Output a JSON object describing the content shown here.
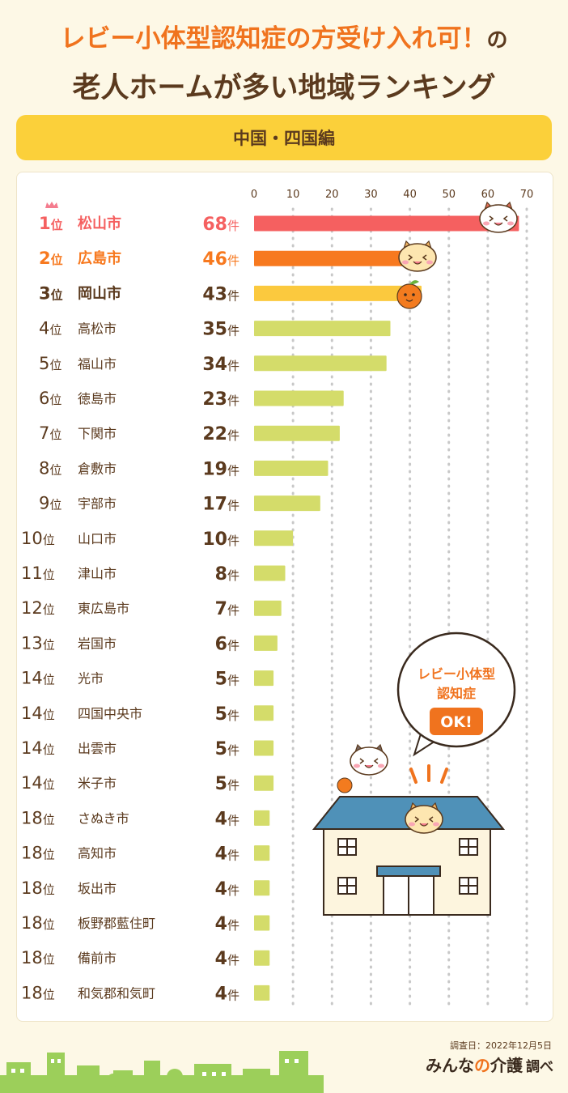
{
  "header": {
    "title_line1": "レビー小体型認知症の方受け入れ可！",
    "title_line1_suffix": "の",
    "title_line2": "老人ホームが多い地域ランキング"
  },
  "region": "中国・四国編",
  "speech": {
    "line1": "レビー小体型",
    "line2": "認知症",
    "ok": "OK!"
  },
  "footer": {
    "survey_date": "調査日：2022年12月5日",
    "brand_a": "みんな",
    "brand_b": "の",
    "brand_c": "介護",
    "brand_d": "調べ"
  },
  "colors": {
    "rank1": "#f56060",
    "rank2": "#f7791f",
    "rank3": "#fbc93e",
    "other": "#d4dc6a",
    "text_dark": "#5b3a1e"
  },
  "chart_data": {
    "type": "bar",
    "orientation": "horizontal",
    "xlim": [
      0,
      70
    ],
    "xticks": [
      "0",
      "10",
      "20",
      "30",
      "40",
      "50",
      "60",
      "70"
    ],
    "grid": true,
    "unit": "件",
    "rows": [
      {
        "rank": "1",
        "rank_suffix": "位",
        "city": "松山市",
        "value": 68
      },
      {
        "rank": "2",
        "rank_suffix": "位",
        "city": "広島市",
        "value": 46
      },
      {
        "rank": "3",
        "rank_suffix": "位",
        "city": "岡山市",
        "value": 43
      },
      {
        "rank": "4",
        "rank_suffix": "位",
        "city": "高松市",
        "value": 35
      },
      {
        "rank": "5",
        "rank_suffix": "位",
        "city": "福山市",
        "value": 34
      },
      {
        "rank": "6",
        "rank_suffix": "位",
        "city": "徳島市",
        "value": 23
      },
      {
        "rank": "7",
        "rank_suffix": "位",
        "city": "下関市",
        "value": 22
      },
      {
        "rank": "8",
        "rank_suffix": "位",
        "city": "倉敷市",
        "value": 19
      },
      {
        "rank": "9",
        "rank_suffix": "位",
        "city": "宇部市",
        "value": 17
      },
      {
        "rank": "10",
        "rank_suffix": "位",
        "city": "山口市",
        "value": 10
      },
      {
        "rank": "11",
        "rank_suffix": "位",
        "city": "津山市",
        "value": 8
      },
      {
        "rank": "12",
        "rank_suffix": "位",
        "city": "東広島市",
        "value": 7
      },
      {
        "rank": "13",
        "rank_suffix": "位",
        "city": "岩国市",
        "value": 6
      },
      {
        "rank": "14",
        "rank_suffix": "位",
        "city": "光市",
        "value": 5
      },
      {
        "rank": "14",
        "rank_suffix": "位",
        "city": "四国中央市",
        "value": 5
      },
      {
        "rank": "14",
        "rank_suffix": "位",
        "city": "出雲市",
        "value": 5
      },
      {
        "rank": "14",
        "rank_suffix": "位",
        "city": "米子市",
        "value": 5
      },
      {
        "rank": "18",
        "rank_suffix": "位",
        "city": "さぬき市",
        "value": 4
      },
      {
        "rank": "18",
        "rank_suffix": "位",
        "city": "高知市",
        "value": 4
      },
      {
        "rank": "18",
        "rank_suffix": "位",
        "city": "坂出市",
        "value": 4
      },
      {
        "rank": "18",
        "rank_suffix": "位",
        "city": "板野郡藍住町",
        "value": 4
      },
      {
        "rank": "18",
        "rank_suffix": "位",
        "city": "備前市",
        "value": 4
      },
      {
        "rank": "18",
        "rank_suffix": "位",
        "city": "和気郡和気町",
        "value": 4
      }
    ]
  }
}
